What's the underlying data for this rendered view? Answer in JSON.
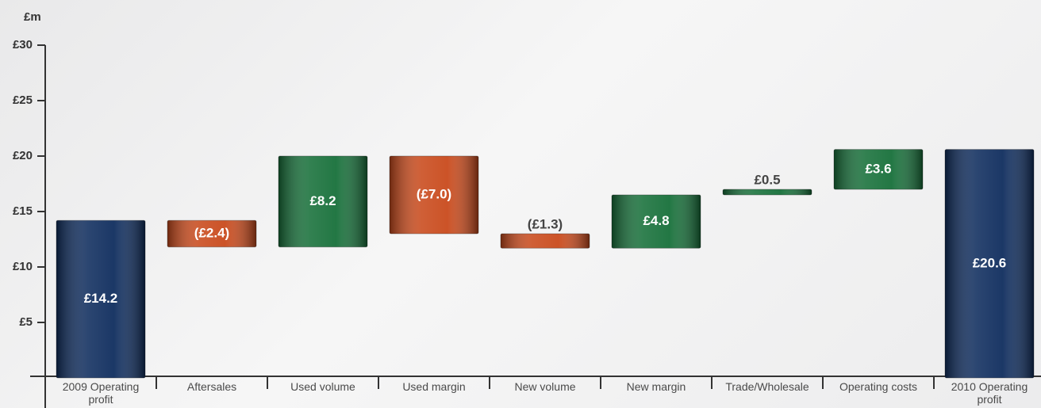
{
  "chart_data": {
    "type": "waterfall",
    "unit_label": "£m",
    "categories": [
      "2009 Operating profit",
      "Aftersales",
      "Used volume",
      "Used margin",
      "New volume",
      "New margin",
      "Trade/Wholesale",
      "Operating costs",
      "2010 Operating profit"
    ],
    "values": [
      14.2,
      -2.4,
      8.2,
      -7.0,
      -1.3,
      4.8,
      0.5,
      3.6,
      20.6
    ],
    "value_labels": [
      "£14.2",
      "(£2.4)",
      "£8.2",
      "(£7.0)",
      "(£1.3)",
      "£4.8",
      "£0.5",
      "£3.6",
      "£20.6"
    ],
    "measure": [
      "absolute",
      "relative",
      "relative",
      "relative",
      "relative",
      "relative",
      "relative",
      "relative",
      "absolute"
    ],
    "colors": [
      "#0f2d5e",
      "#c94a1c",
      "#17703a",
      "#c94a1c",
      "#c94a1c",
      "#17703a",
      "#17703a",
      "#17703a",
      "#0f2d5e"
    ],
    "ylim": [
      0,
      30
    ],
    "yticks": [
      {
        "value": 5,
        "label": "£5"
      },
      {
        "value": 10,
        "label": "£10"
      },
      {
        "value": 15,
        "label": "£15"
      },
      {
        "value": 20,
        "label": "£20"
      },
      {
        "value": 25,
        "label": "£25"
      },
      {
        "value": 30,
        "label": "£30"
      }
    ]
  }
}
